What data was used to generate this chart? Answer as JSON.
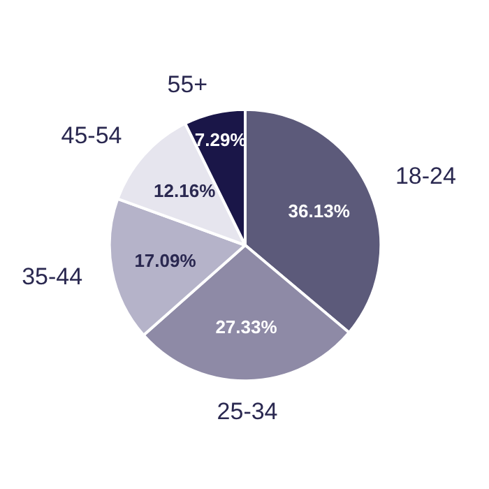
{
  "chart_data": {
    "type": "pie",
    "categories": [
      "18-24",
      "25-34",
      "35-44",
      "45-54",
      "55+"
    ],
    "values": [
      36.13,
      27.33,
      17.09,
      12.16,
      7.29
    ],
    "colors": [
      "#5c5a7a",
      "#8e8aa6",
      "#b5b3c9",
      "#e6e5ee",
      "#1a1648"
    ],
    "value_labels": [
      "36.13%",
      "27.33%",
      "17.09%",
      "12.16%",
      "7.29%"
    ]
  }
}
